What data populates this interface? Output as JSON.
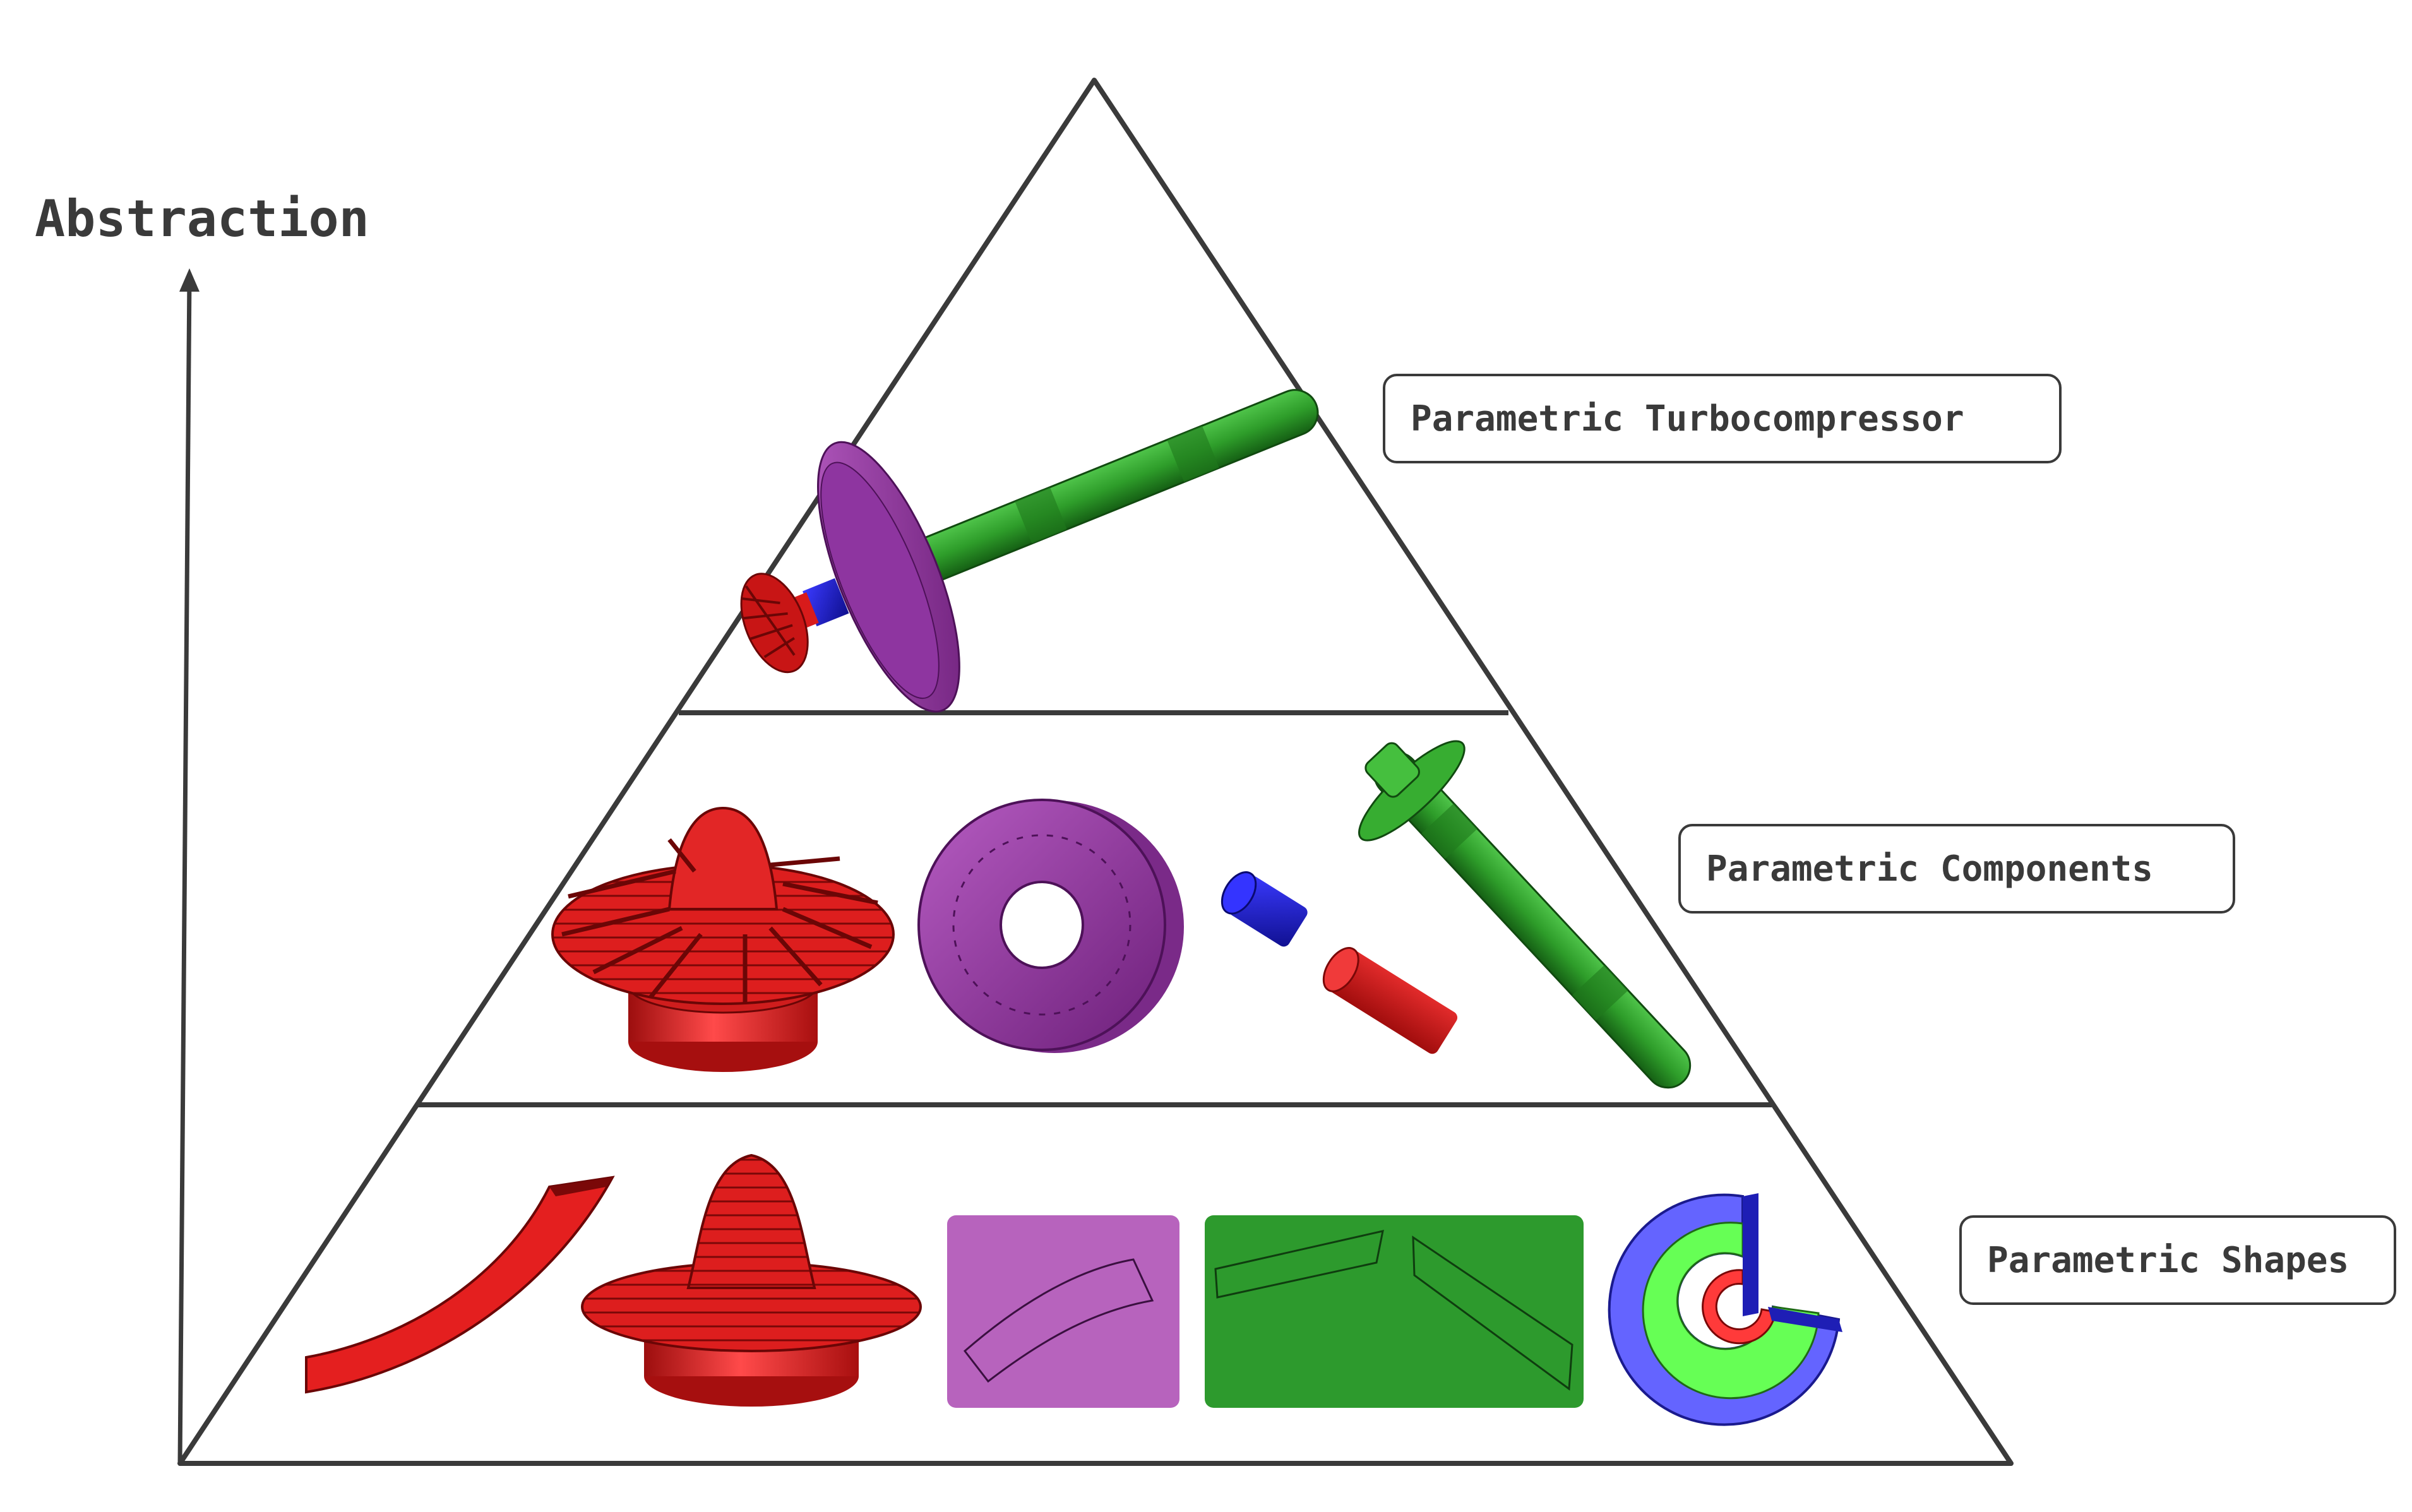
{
  "axis": {
    "label": "Abstraction"
  },
  "levels": [
    {
      "label": "Parametric Turbocompressor"
    },
    {
      "label": "Parametric Components"
    },
    {
      "label": "Parametric Shapes"
    }
  ],
  "colors": {
    "impeller_red": "#dd1e1e",
    "shaft_green": "#2e9d2a",
    "disk_purple": "#9a3ca8",
    "sleeve_blue": "#1f1fd6",
    "profile_violet": "#b763bd",
    "sketch_green": "#2d9a2d",
    "light_blue": "#6464ff",
    "light_green": "#66ff55",
    "outline": "#3a3a3a"
  }
}
